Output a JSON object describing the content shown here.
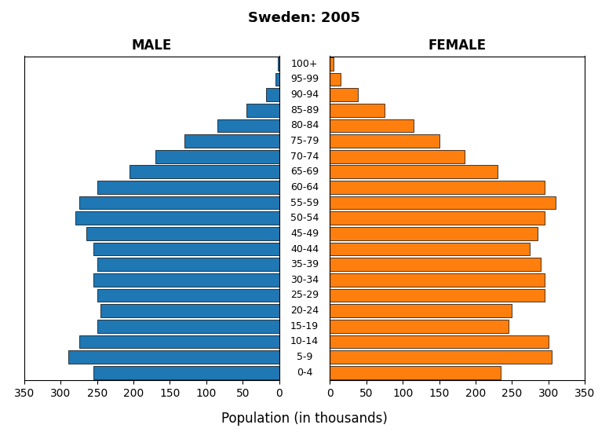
{
  "chart_data": {
    "type": "bar",
    "orientation": "horizontal",
    "title": "Sweden: 2005",
    "x_label": "Population (in thousands)",
    "categories": [
      "100+",
      "95-99",
      "90-94",
      "85-89",
      "80-84",
      "75-79",
      "70-74",
      "65-69",
      "60-64",
      "55-59",
      "50-54",
      "45-49",
      "40-44",
      "35-39",
      "30-34",
      "25-29",
      "20-24",
      "15-19",
      "10-14",
      "5-9",
      "0-4"
    ],
    "series": [
      {
        "name": "MALE",
        "color": "#1f77b4",
        "values": [
          2,
          5,
          18,
          45,
          85,
          130,
          170,
          205,
          250,
          275,
          280,
          265,
          255,
          250,
          255,
          250,
          245,
          250,
          275,
          290,
          255
        ]
      },
      {
        "name": "FEMALE",
        "color": "#ff7f0e",
        "values": [
          5,
          15,
          38,
          75,
          115,
          150,
          185,
          230,
          295,
          310,
          295,
          285,
          275,
          290,
          295,
          295,
          250,
          245,
          300,
          305,
          235
        ]
      }
    ],
    "xlim": [
      0,
      350
    ],
    "xticks": [
      0,
      50,
      100,
      150,
      200,
      250,
      300,
      350
    ],
    "grid": false
  }
}
